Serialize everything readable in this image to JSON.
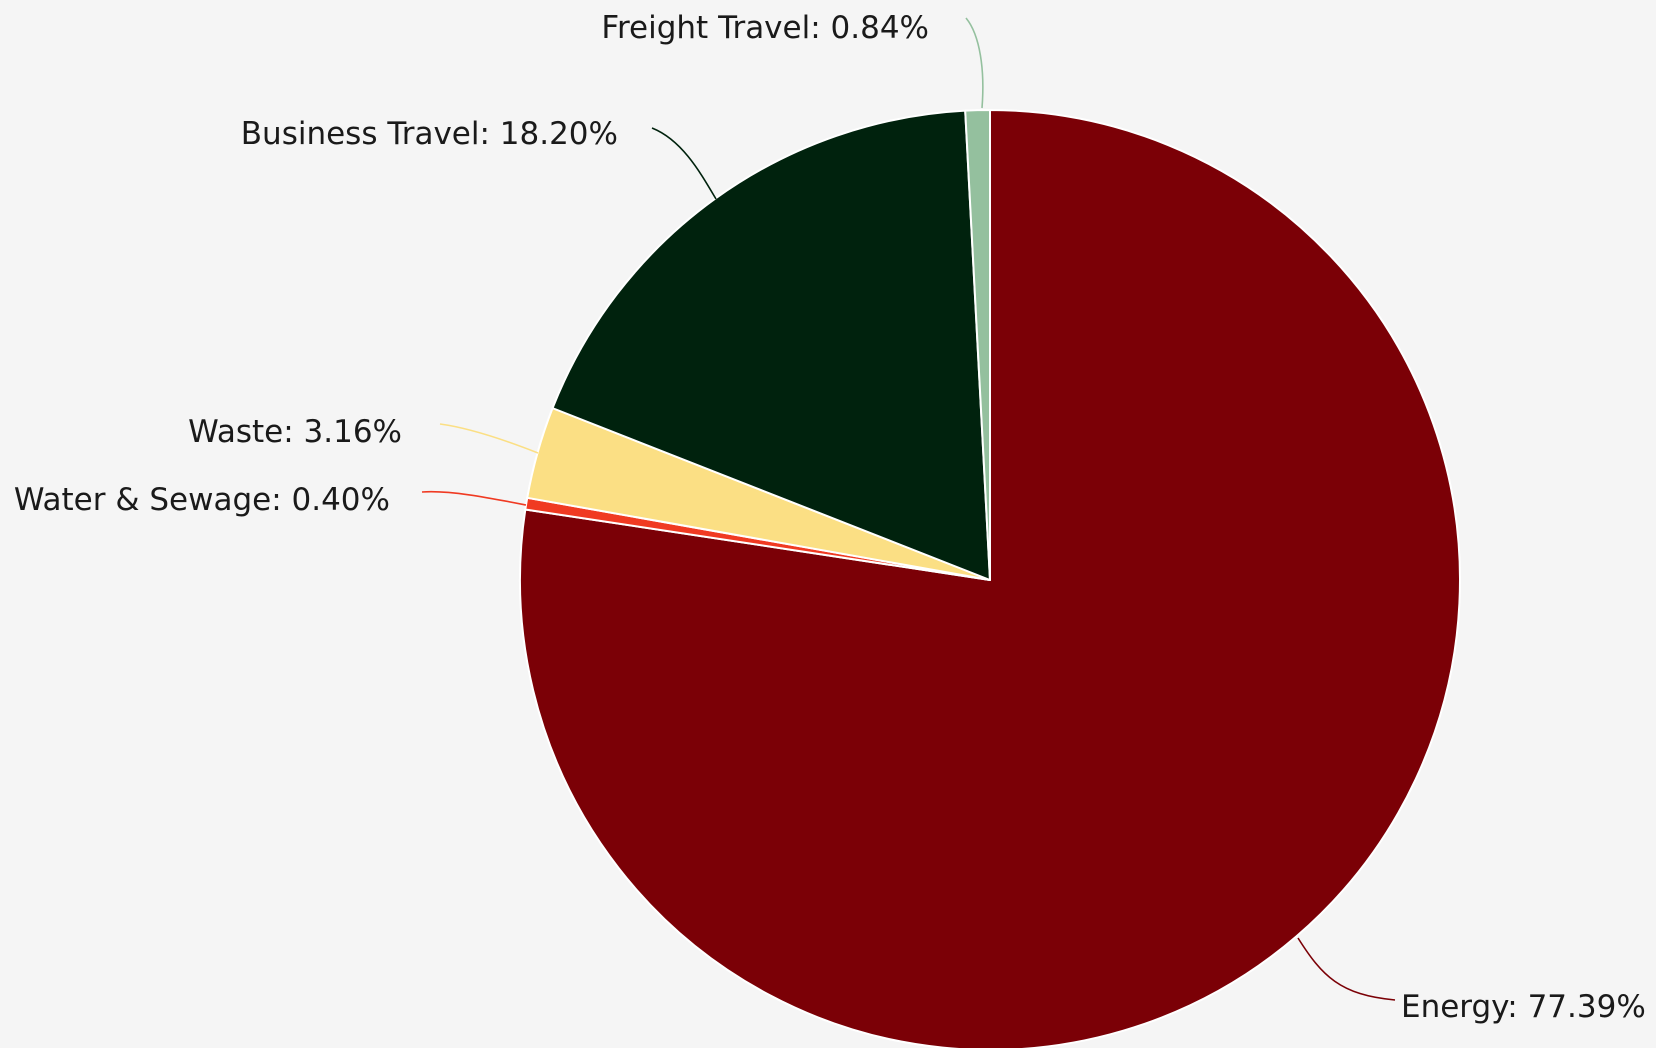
{
  "chart_data": {
    "type": "pie",
    "title": "",
    "start_angle_deg": 0,
    "direction": "clockwise",
    "slices": [
      {
        "label": "Energy: 77.39%",
        "name": "Energy",
        "value": 77.39,
        "color": "#7b0006"
      },
      {
        "label": "Water & Sewage: 0.40%",
        "name": "Water & Sewage",
        "value": 0.4,
        "color": "#f03a22"
      },
      {
        "label": "Waste: 3.16%",
        "name": "Waste",
        "value": 3.16,
        "color": "#fbdf84"
      },
      {
        "label": "Business Travel: 18.20%",
        "name": "Business Travel",
        "value": 18.2,
        "color": "#00220d"
      },
      {
        "label": "Freight Travel: 0.84%",
        "name": "Freight Travel",
        "value": 0.84,
        "color": "#94c09e"
      }
    ]
  }
}
